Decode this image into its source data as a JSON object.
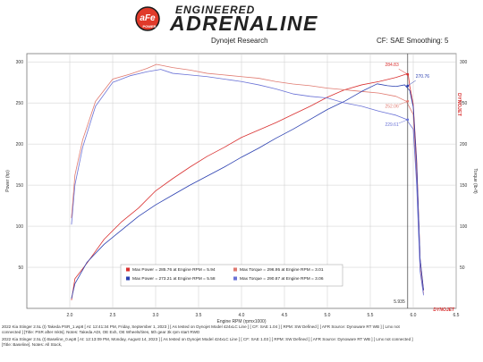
{
  "logo": {
    "badge_text": "aFe",
    "badge_sub": "POWER",
    "engineered": "ENGINEERED",
    "adrenaline": "ADRENALINE"
  },
  "header": {
    "left": "Dynojet Research",
    "right": "CF: SAE Smoothing: 5"
  },
  "footer": {
    "line1": "2022 Kia Stinger 2.5L (t) Takeda PSR_1.wp8 [ At: 12:41:34 PM, Friday, September 1, 2023 ] [ As tested on Dynojet Model 424xLC Line ] [ CF: SAE 1.04 ] [ RPM: SW Defined ] [ AFR Source: Dynoware RT WB ] [ Lmx not",
    "line2": "connected ] [Title: PSR after mkts]. Notes: Takeda ADI, OE Exh, OE Wheels/tires, 5th gear 3k rpm start RWD",
    "line3": "2022 Kia Stinger 2.5L (t) Baseline_0.wp8 [ At: 12:13:09 PM, Monday, August 14, 2023 ] [ As tested on Dynojet Model 424xLC Line ] [ CF: SAE 1.03 ] [ RPM: SW Defined ] [ AFR Source: Dynoware RT WB ] [ Lmx not connected ]",
    "line4": "[Title: Baseline]. Notes: All Stock,"
  },
  "chart_data": {
    "type": "line",
    "xlabel": "Engine RPM (rpmx1000)",
    "ylabel_left": "Power (hp)",
    "ylabel_right": "Torque (lb-ft)",
    "xlim": [
      1.5,
      6.5
    ],
    "ylim": [
      0,
      310
    ],
    "xticks": [
      "2.0",
      "2.5",
      "3.0",
      "3.5",
      "4.0",
      "4.5",
      "5.0",
      "5.5",
      "6.0",
      "6.5"
    ],
    "yticks": [
      "50",
      "100",
      "150",
      "200",
      "250",
      "300"
    ],
    "yticks_right": [
      "50",
      "100",
      "150",
      "200",
      "250",
      "300"
    ],
    "grid": true,
    "cursor": {
      "x": 5.935,
      "label": "5.935"
    },
    "annotations": [
      {
        "text": "284.83",
        "y": 284.83,
        "color": "#d93030",
        "side": "left"
      },
      {
        "text": "270.76",
        "y": 270.76,
        "color": "#2a3fb0",
        "side": "right"
      },
      {
        "text": "252.06",
        "y": 252.06,
        "color": "#e07a70",
        "side": "left"
      },
      {
        "text": "229.61",
        "y": 229.61,
        "color": "#6a72d6",
        "side": "left"
      }
    ],
    "legend": [
      {
        "label": "Max Power = 285.76 at Engine RPM = 5.94",
        "color": "#d93030"
      },
      {
        "label": "Max Torque = 296.95 at Engine RPM = 3.01",
        "color": "#e07a70"
      },
      {
        "label": "Max Power = 273.21 at Engine RPM = 5.58",
        "color": "#2a3fb0"
      },
      {
        "label": "Max Torque = 290.87 at Engine RPM = 3.06",
        "color": "#6a72d6"
      }
    ],
    "series": [
      {
        "kind": "power",
        "color": "#d93030",
        "x": [
          2.02,
          2.06,
          2.2,
          2.4,
          2.6,
          2.8,
          3.0,
          3.2,
          3.4,
          3.6,
          3.8,
          4.0,
          4.2,
          4.4,
          4.6,
          4.8,
          5.0,
          5.2,
          5.4,
          5.6,
          5.8,
          5.94,
          5.96,
          6.0,
          6.04,
          6.08,
          6.12
        ],
        "y": [
          10,
          36,
          55,
          84,
          105,
          122,
          143,
          158,
          172,
          185,
          196,
          208,
          217,
          226,
          236,
          246,
          257,
          266,
          272,
          276,
          281,
          285.76,
          270,
          248,
          180,
          60,
          22
        ]
      },
      {
        "kind": "torque",
        "color": "#e07a70",
        "x": [
          2.02,
          2.06,
          2.15,
          2.3,
          2.5,
          2.7,
          2.9,
          3.01,
          3.2,
          3.4,
          3.6,
          3.8,
          4.0,
          4.2,
          4.4,
          4.6,
          4.8,
          5.0,
          5.2,
          5.4,
          5.6,
          5.8,
          5.92,
          6.0,
          6.04,
          6.08,
          6.12
        ],
        "y": [
          110,
          162,
          205,
          252,
          279,
          285,
          292,
          296.95,
          293,
          290,
          286,
          284,
          282,
          280,
          276,
          273,
          271,
          268,
          266,
          264,
          262,
          258,
          252,
          236,
          160,
          48,
          18
        ]
      },
      {
        "kind": "power",
        "color": "#2a3fb0",
        "x": [
          2.02,
          2.06,
          2.2,
          2.4,
          2.6,
          2.8,
          3.0,
          3.2,
          3.4,
          3.6,
          3.8,
          4.0,
          4.2,
          4.4,
          4.6,
          4.8,
          5.0,
          5.2,
          5.4,
          5.58,
          5.7,
          5.8,
          5.9,
          5.96,
          6.0,
          6.04,
          6.08,
          6.12
        ],
        "y": [
          12,
          30,
          56,
          78,
          95,
          112,
          126,
          138,
          150,
          161,
          172,
          184,
          195,
          207,
          218,
          230,
          242,
          252,
          264,
          273.21,
          271,
          270,
          272,
          265,
          245,
          175,
          60,
          22
        ]
      },
      {
        "kind": "torque",
        "color": "#6a72d6",
        "x": [
          2.02,
          2.06,
          2.15,
          2.3,
          2.5,
          2.7,
          2.9,
          3.06,
          3.2,
          3.4,
          3.6,
          3.8,
          4.0,
          4.2,
          4.4,
          4.6,
          4.8,
          5.0,
          5.2,
          5.4,
          5.6,
          5.8,
          5.92,
          6.0,
          6.04,
          6.08,
          6.12
        ],
        "y": [
          102,
          150,
          196,
          246,
          275,
          283,
          288,
          290.87,
          286,
          284,
          282,
          279,
          276,
          272,
          267,
          261,
          258,
          256,
          250,
          246,
          240,
          235,
          230,
          218,
          150,
          45,
          16
        ]
      }
    ]
  }
}
